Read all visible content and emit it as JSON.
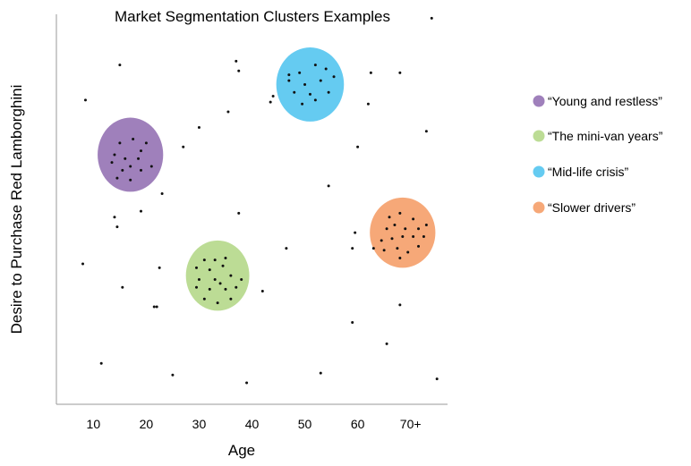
{
  "chart_data": {
    "type": "scatter",
    "title": "Market Segmentation Clusters Examples",
    "xlabel": "Age",
    "ylabel": "Desire to Purchase Red Lamborghini",
    "x_ticks": [
      "10",
      "20",
      "30",
      "40",
      "50",
      "60",
      "70+"
    ],
    "xlim": [
      3,
      77
    ],
    "ylim": [
      0,
      100
    ],
    "grid": false,
    "legend_position": "right",
    "clusters": [
      {
        "label": "“Young and restless”",
        "color": "#9f80bb",
        "center": [
          17,
          64
        ],
        "radius_x": 6.2,
        "radius_y": 9.5,
        "points": [
          [
            15,
            67
          ],
          [
            17.5,
            68
          ],
          [
            14,
            64
          ],
          [
            16,
            63
          ],
          [
            19,
            65
          ],
          [
            13.5,
            62
          ],
          [
            17,
            61
          ],
          [
            15.5,
            60
          ],
          [
            19,
            60
          ],
          [
            21,
            61
          ],
          [
            14.5,
            58
          ],
          [
            17,
            57.5
          ],
          [
            20,
            67
          ],
          [
            18.5,
            63
          ]
        ]
      },
      {
        "label": "“The mini-van years”",
        "color": "#bcdc95",
        "center": [
          33.5,
          33
        ],
        "radius_x": 6,
        "radius_y": 9,
        "points": [
          [
            31,
            37
          ],
          [
            33,
            37
          ],
          [
            35,
            37.5
          ],
          [
            29.5,
            35
          ],
          [
            32,
            34.5
          ],
          [
            34.5,
            35.5
          ],
          [
            30,
            32
          ],
          [
            33,
            32
          ],
          [
            36,
            33
          ],
          [
            38,
            32
          ],
          [
            29.5,
            30
          ],
          [
            32,
            29.5
          ],
          [
            35,
            29.5
          ],
          [
            37,
            30
          ],
          [
            31,
            27
          ],
          [
            33.5,
            26
          ],
          [
            36,
            27
          ],
          [
            34,
            31
          ]
        ]
      },
      {
        "label": "“Mid-life crisis”",
        "color": "#65cbf1",
        "center": [
          51,
          82
        ],
        "radius_x": 6.4,
        "radius_y": 9.5,
        "points": [
          [
            49,
            85
          ],
          [
            52,
            87
          ],
          [
            54,
            86
          ],
          [
            47,
            83
          ],
          [
            50,
            82
          ],
          [
            53,
            83
          ],
          [
            55.5,
            84
          ],
          [
            48,
            80
          ],
          [
            51,
            79.5
          ],
          [
            54.5,
            80
          ],
          [
            52,
            78
          ],
          [
            49.5,
            77
          ],
          [
            44,
            79
          ],
          [
            47,
            84.5
          ]
        ]
      },
      {
        "label": "“Slower drivers”",
        "color": "#f6a878",
        "center": [
          68.5,
          44
        ],
        "radius_x": 6.2,
        "radius_y": 9,
        "points": [
          [
            66,
            48
          ],
          [
            68,
            49
          ],
          [
            70.5,
            47.5
          ],
          [
            65.5,
            45
          ],
          [
            67,
            46
          ],
          [
            69,
            45
          ],
          [
            71.5,
            45
          ],
          [
            73,
            46
          ],
          [
            64.5,
            42
          ],
          [
            66.5,
            42.5
          ],
          [
            68.5,
            43
          ],
          [
            70.5,
            43
          ],
          [
            72.5,
            43
          ],
          [
            65,
            39.5
          ],
          [
            67.5,
            40
          ],
          [
            69.5,
            39
          ],
          [
            71.5,
            40.5
          ],
          [
            68,
            37.5
          ]
        ]
      }
    ],
    "background_points": [
      [
        74,
        99
      ],
      [
        15,
        87
      ],
      [
        37,
        88
      ],
      [
        37.5,
        85.5
      ],
      [
        62.5,
        85
      ],
      [
        68,
        85
      ],
      [
        8.5,
        78
      ],
      [
        62,
        77
      ],
      [
        35.5,
        75
      ],
      [
        43.5,
        77.5
      ],
      [
        30,
        71
      ],
      [
        73,
        70
      ],
      [
        27,
        66
      ],
      [
        60,
        66
      ],
      [
        54.5,
        56
      ],
      [
        23,
        54
      ],
      [
        37.5,
        49
      ],
      [
        19,
        49.5
      ],
      [
        14,
        48
      ],
      [
        14.5,
        45.5
      ],
      [
        59.5,
        44
      ],
      [
        8,
        36
      ],
      [
        22.5,
        35
      ],
      [
        46.5,
        40
      ],
      [
        59,
        40
      ],
      [
        63,
        40
      ],
      [
        15.5,
        30
      ],
      [
        42,
        29
      ],
      [
        68,
        25.5
      ],
      [
        21.5,
        25
      ],
      [
        22,
        25
      ],
      [
        59,
        21
      ],
      [
        65.5,
        15.5
      ],
      [
        11.5,
        10.5
      ],
      [
        25,
        7.5
      ],
      [
        39,
        5.5
      ],
      [
        53,
        8
      ],
      [
        75,
        6.5
      ]
    ]
  }
}
